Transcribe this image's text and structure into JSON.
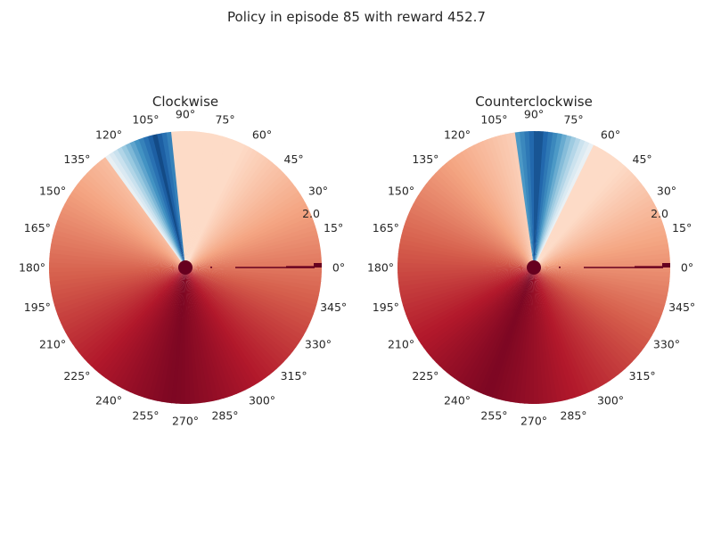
{
  "chart_data": {
    "type": "heatmap",
    "suptitle": "Policy in episode 85 with reward 452.7",
    "projection": "polar",
    "angle_ticks_deg": [
      0,
      15,
      30,
      45,
      60,
      75,
      90,
      105,
      120,
      135,
      150,
      165,
      180,
      195,
      210,
      225,
      240,
      255,
      270,
      285,
      300,
      315,
      330,
      345
    ],
    "angle_tick_suffix": "°",
    "radial_tick_label": "2.0",
    "radial_tick_angle_deg": 22.5,
    "colormap": "RdBu",
    "panels": [
      {
        "title": "Clockwise",
        "blue_region_deg": [
          96,
          126
        ],
        "blue_peak_deg": 103,
        "dark_red_deg": 265
      },
      {
        "title": "Counterclockwise",
        "blue_region_deg": [
          64,
          98
        ],
        "blue_peak_deg": 88,
        "dark_red_deg": 250
      }
    ]
  }
}
